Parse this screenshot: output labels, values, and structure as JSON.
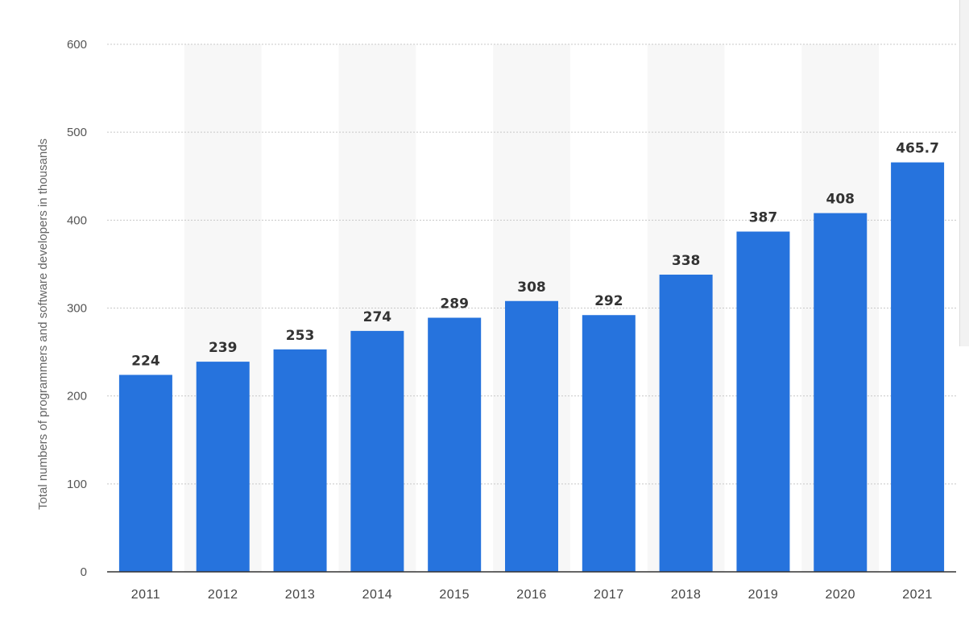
{
  "chart_data": {
    "type": "bar",
    "categories": [
      "2011",
      "2012",
      "2013",
      "2014",
      "2015",
      "2016",
      "2017",
      "2018",
      "2019",
      "2020",
      "2021"
    ],
    "values": [
      224,
      239,
      253,
      274,
      289,
      308,
      292,
      338,
      387,
      408,
      465.7
    ],
    "value_labels": [
      "224",
      "239",
      "253",
      "274",
      "289",
      "308",
      "292",
      "338",
      "387",
      "408",
      "465.7"
    ],
    "title": "",
    "xlabel": "",
    "ylabel": "Total numbers of programmers and software developers in thousands",
    "ylim": [
      0,
      600
    ],
    "yticks": [
      "0",
      "100",
      "200",
      "300",
      "400",
      "500",
      "600"
    ],
    "grid": true,
    "legend": "none",
    "bar_color": "#2673dd",
    "alt_band_color": "#f7f7f7"
  }
}
